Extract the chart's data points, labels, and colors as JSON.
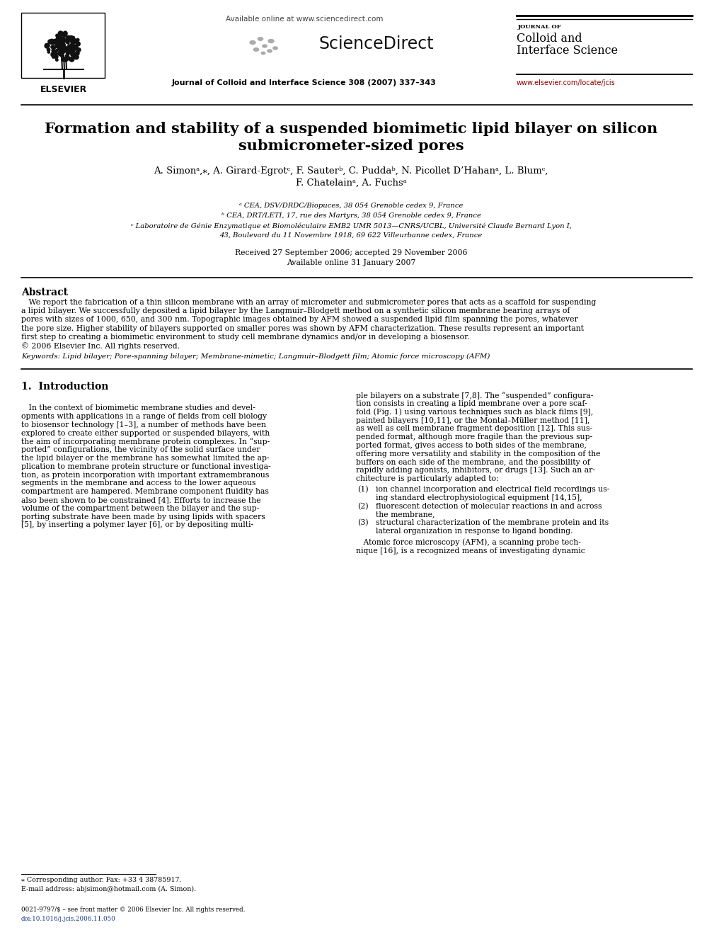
{
  "page_width": 9.92,
  "page_height": 13.23,
  "bg_color": "#ffffff",
  "available_online": "Available online at www.sciencedirect.com",
  "sciencedirect": "ScienceDirect",
  "journal_line": "Journal of Colloid and Interface Science 308 (2007) 337–343",
  "journal_small": "JOURNAL OF",
  "journal_main1": "Colloid and",
  "journal_main2": "Interface Science",
  "website": "www.elsevier.com/locate/jcis",
  "elsevier_label": "ELSEVIER",
  "title_line1": "Formation and stability of a suspended biomimetic lipid bilayer on silicon",
  "title_line2": "submicrometer-sized pores",
  "authors_line1": "A. Simonᵃ,⁎, A. Girard-Egrotᶜ, F. Sauterᵇ, C. Puddaᵇ, N. Picollet D’Hahanᵃ, L. Blumᶜ,",
  "authors_line2": "F. Chatelainᵃ, A. Fuchsᵃ",
  "aff1": "ᵃ CEA, DSV/DRDC/Biopuces, 38 054 Grenoble cedex 9, France",
  "aff2": "ᵇ CEA, DRT/LETI, 17, rue des Martyrs, 38 054 Grenoble cedex 9, France",
  "aff3": "ᶜ Laboratoire de Génie Enzymatique et Biomoléculaire EMB2 UMR 5013—CNRS/UCBL, Université Claude Bernard Lyon I,",
  "aff4": "43, Boulevard du 11 Novembre 1918, 69 622 Villeurbanne cedex, France",
  "received": "Received 27 September 2006; accepted 29 November 2006",
  "available": "Available online 31 January 2007",
  "abstract_head": "Abstract",
  "abstract_indent": "   We report the fabrication of a thin silicon membrane with an array of micrometer and submicrometer pores that acts as a scaffold for suspending",
  "abstract_lines": [
    "a lipid bilayer. We successfully deposited a lipid bilayer by the Langmuir–Blodgett method on a synthetic silicon membrane bearing arrays of",
    "pores with sizes of 1000, 650, and 300 nm. Topographic images obtained by AFM showed a suspended lipid film spanning the pores, whatever",
    "the pore size. Higher stability of bilayers supported on smaller pores was shown by AFM characterization. These results represent an important",
    "first step to creating a biomimetic environment to study cell membrane dynamics and/or in developing a biosensor.",
    "© 2006 Elsevier Inc. All rights reserved."
  ],
  "keywords_line": "Keywords: Lipid bilayer; Pore-spanning bilayer; Membrane-mimetic; Langmuir–Blodgett film; Atomic force microscopy (AFM)",
  "sec1_title": "1.  Introduction",
  "col1_lines": [
    "   In the context of biomimetic membrane studies and devel-",
    "opments with applications in a range of fields from cell biology",
    "to biosensor technology [1–3], a number of methods have been",
    "explored to create either supported or suspended bilayers, with",
    "the aim of incorporating membrane protein complexes. In “sup-",
    "ported” configurations, the vicinity of the solid surface under",
    "the lipid bilayer or the membrane has somewhat limited the ap-",
    "plication to membrane protein structure or functional investiga-",
    "tion, as protein incorporation with important extramembranous",
    "segments in the membrane and access to the lower aqueous",
    "compartment are hampered. Membrane component fluidity has",
    "also been shown to be constrained [4]. Efforts to increase the",
    "volume of the compartment between the bilayer and the sup-",
    "porting substrate have been made by using lipids with spacers",
    "[5], by inserting a polymer layer [6], or by depositing multi-"
  ],
  "col2_lines": [
    "ple bilayers on a substrate [7,8]. The “suspended” configura-",
    "tion consists in creating a lipid membrane over a pore scaf-",
    "fold (Fig. 1) using various techniques such as black films [9],",
    "painted bilayers [10,11], or the Montal–Müller method [11],",
    "as well as cell membrane fragment deposition [12]. This sus-",
    "pended format, although more fragile than the previous sup-",
    "ported format, gives access to both sides of the membrane,",
    "offering more versatility and stability in the composition of the",
    "buffers on each side of the membrane, and the possibility of",
    "rapidly adding agonists, inhibitors, or drugs [13]. Such an ar-",
    "chitecture is particularly adapted to:"
  ],
  "list_num": [
    "(1)",
    "(2)",
    "(3)"
  ],
  "list_text": [
    "ion channel incorporation and electrical field recordings us-",
    "ing standard electrophysiological equipment [14,15],",
    "fluorescent detection of molecular reactions in and across",
    "the membrane,",
    "structural characterization of the membrane protein and its",
    "lateral organization in response to ligand bonding."
  ],
  "afm_lines": [
    "   Atomic force microscopy (AFM), a scanning probe tech-",
    "nique [16], is a recognized means of investigating dynamic"
  ],
  "footnote1": "⁎ Corresponding author. Fax: +33 4 38785917.",
  "footnote2": "E-mail address: abjsimon@hotmail.com (A. Simon).",
  "footer1": "0021-9797/$ – see front matter © 2006 Elsevier Inc. All rights reserved.",
  "footer2": "doi:10.1016/j.jcis.2006.11.050",
  "black": "#000000",
  "gray": "#666666",
  "blue": "#1a3a8a",
  "red_url": "#8b0000",
  "link_blue": "#1a3a8a"
}
